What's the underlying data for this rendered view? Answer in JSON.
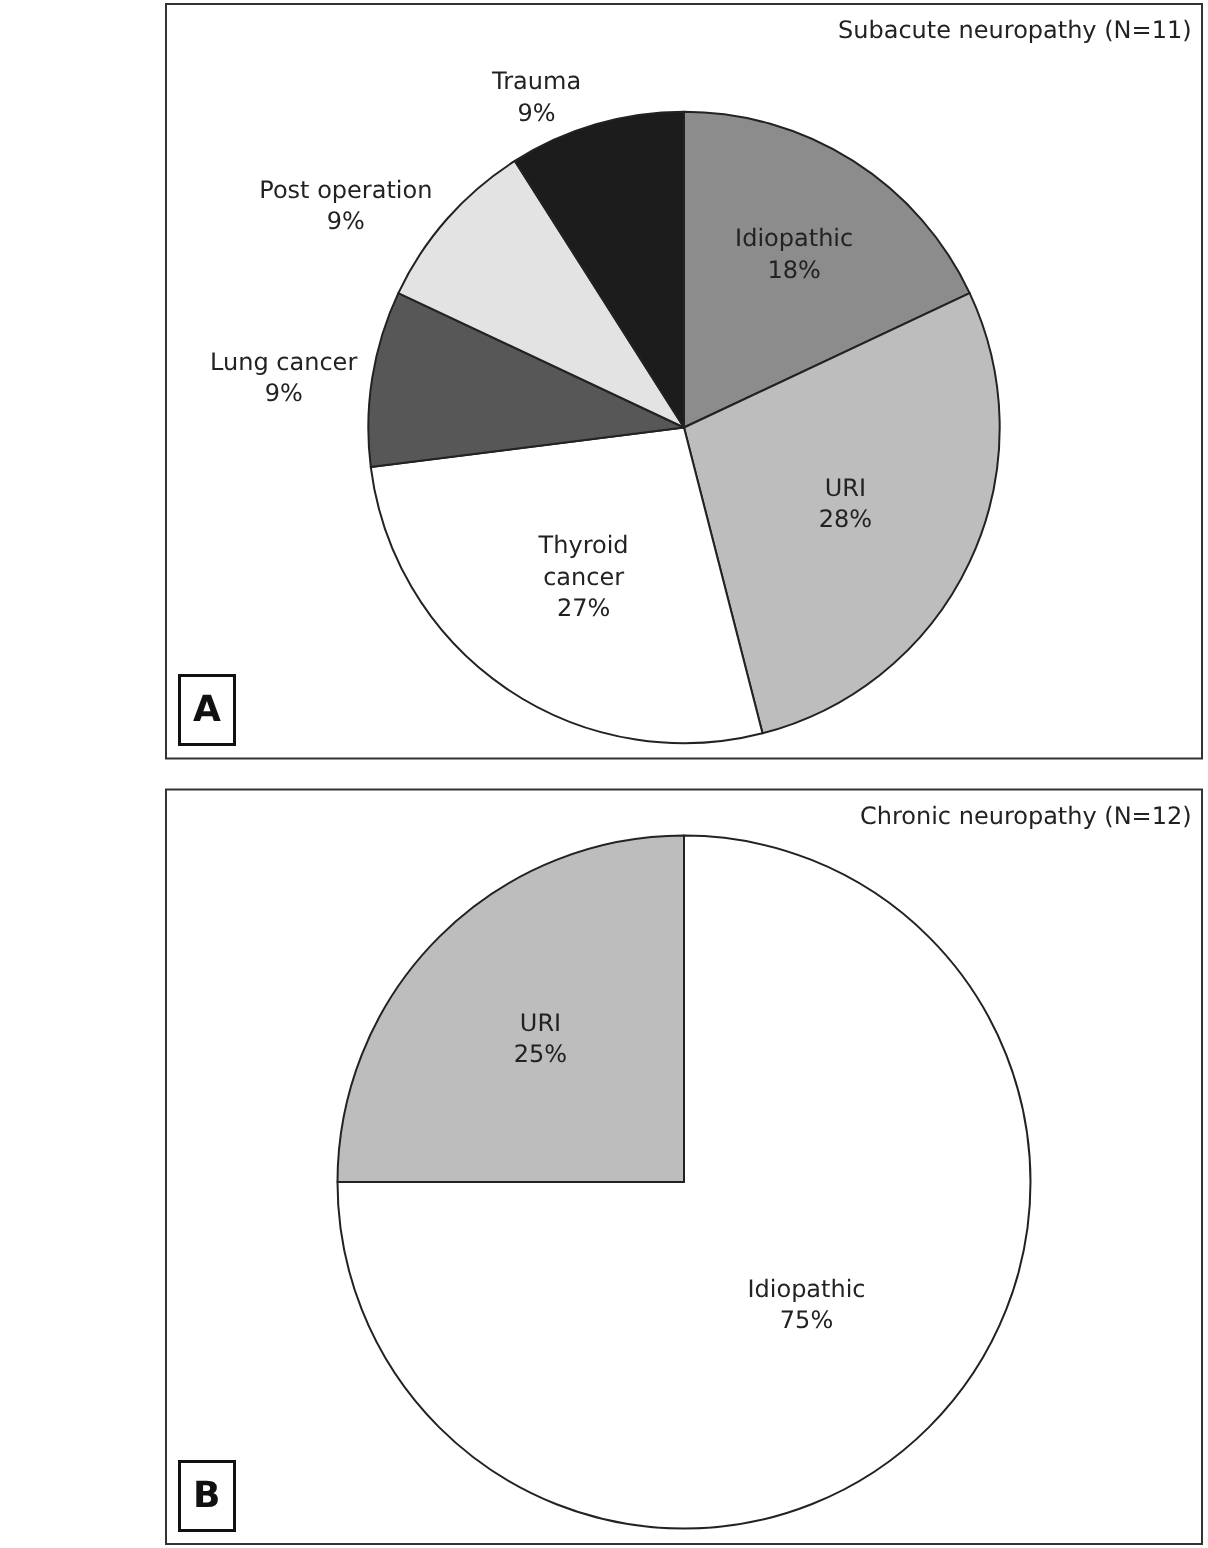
{
  "chart_data": [
    {
      "type": "pie",
      "title": "Subacute neuropathy (N=11)",
      "annotations": [
        "A"
      ],
      "categories": [
        "Idiopathic",
        "URI",
        "Thyroid cancer",
        "Lung cancer",
        "Post operation",
        "Trauma"
      ],
      "values": [
        18,
        28,
        27,
        9,
        9,
        9
      ],
      "value_labels": [
        "18%",
        "28%",
        "27%",
        "9%",
        "9%",
        "9%"
      ],
      "colors": [
        "#8c8c8c",
        "#bdbdbd",
        "#ffffff",
        "#575757",
        "#e3e3e3",
        "#1c1c1c"
      ]
    },
    {
      "type": "pie",
      "title": "Chronic neuropathy (N=12)",
      "annotations": [
        "B"
      ],
      "categories": [
        "Idiopathic",
        "URI"
      ],
      "values": [
        75,
        25
      ],
      "value_labels": [
        "75%",
        "25%"
      ],
      "colors": [
        "#ffffff",
        "#bdbdbd"
      ]
    }
  ]
}
